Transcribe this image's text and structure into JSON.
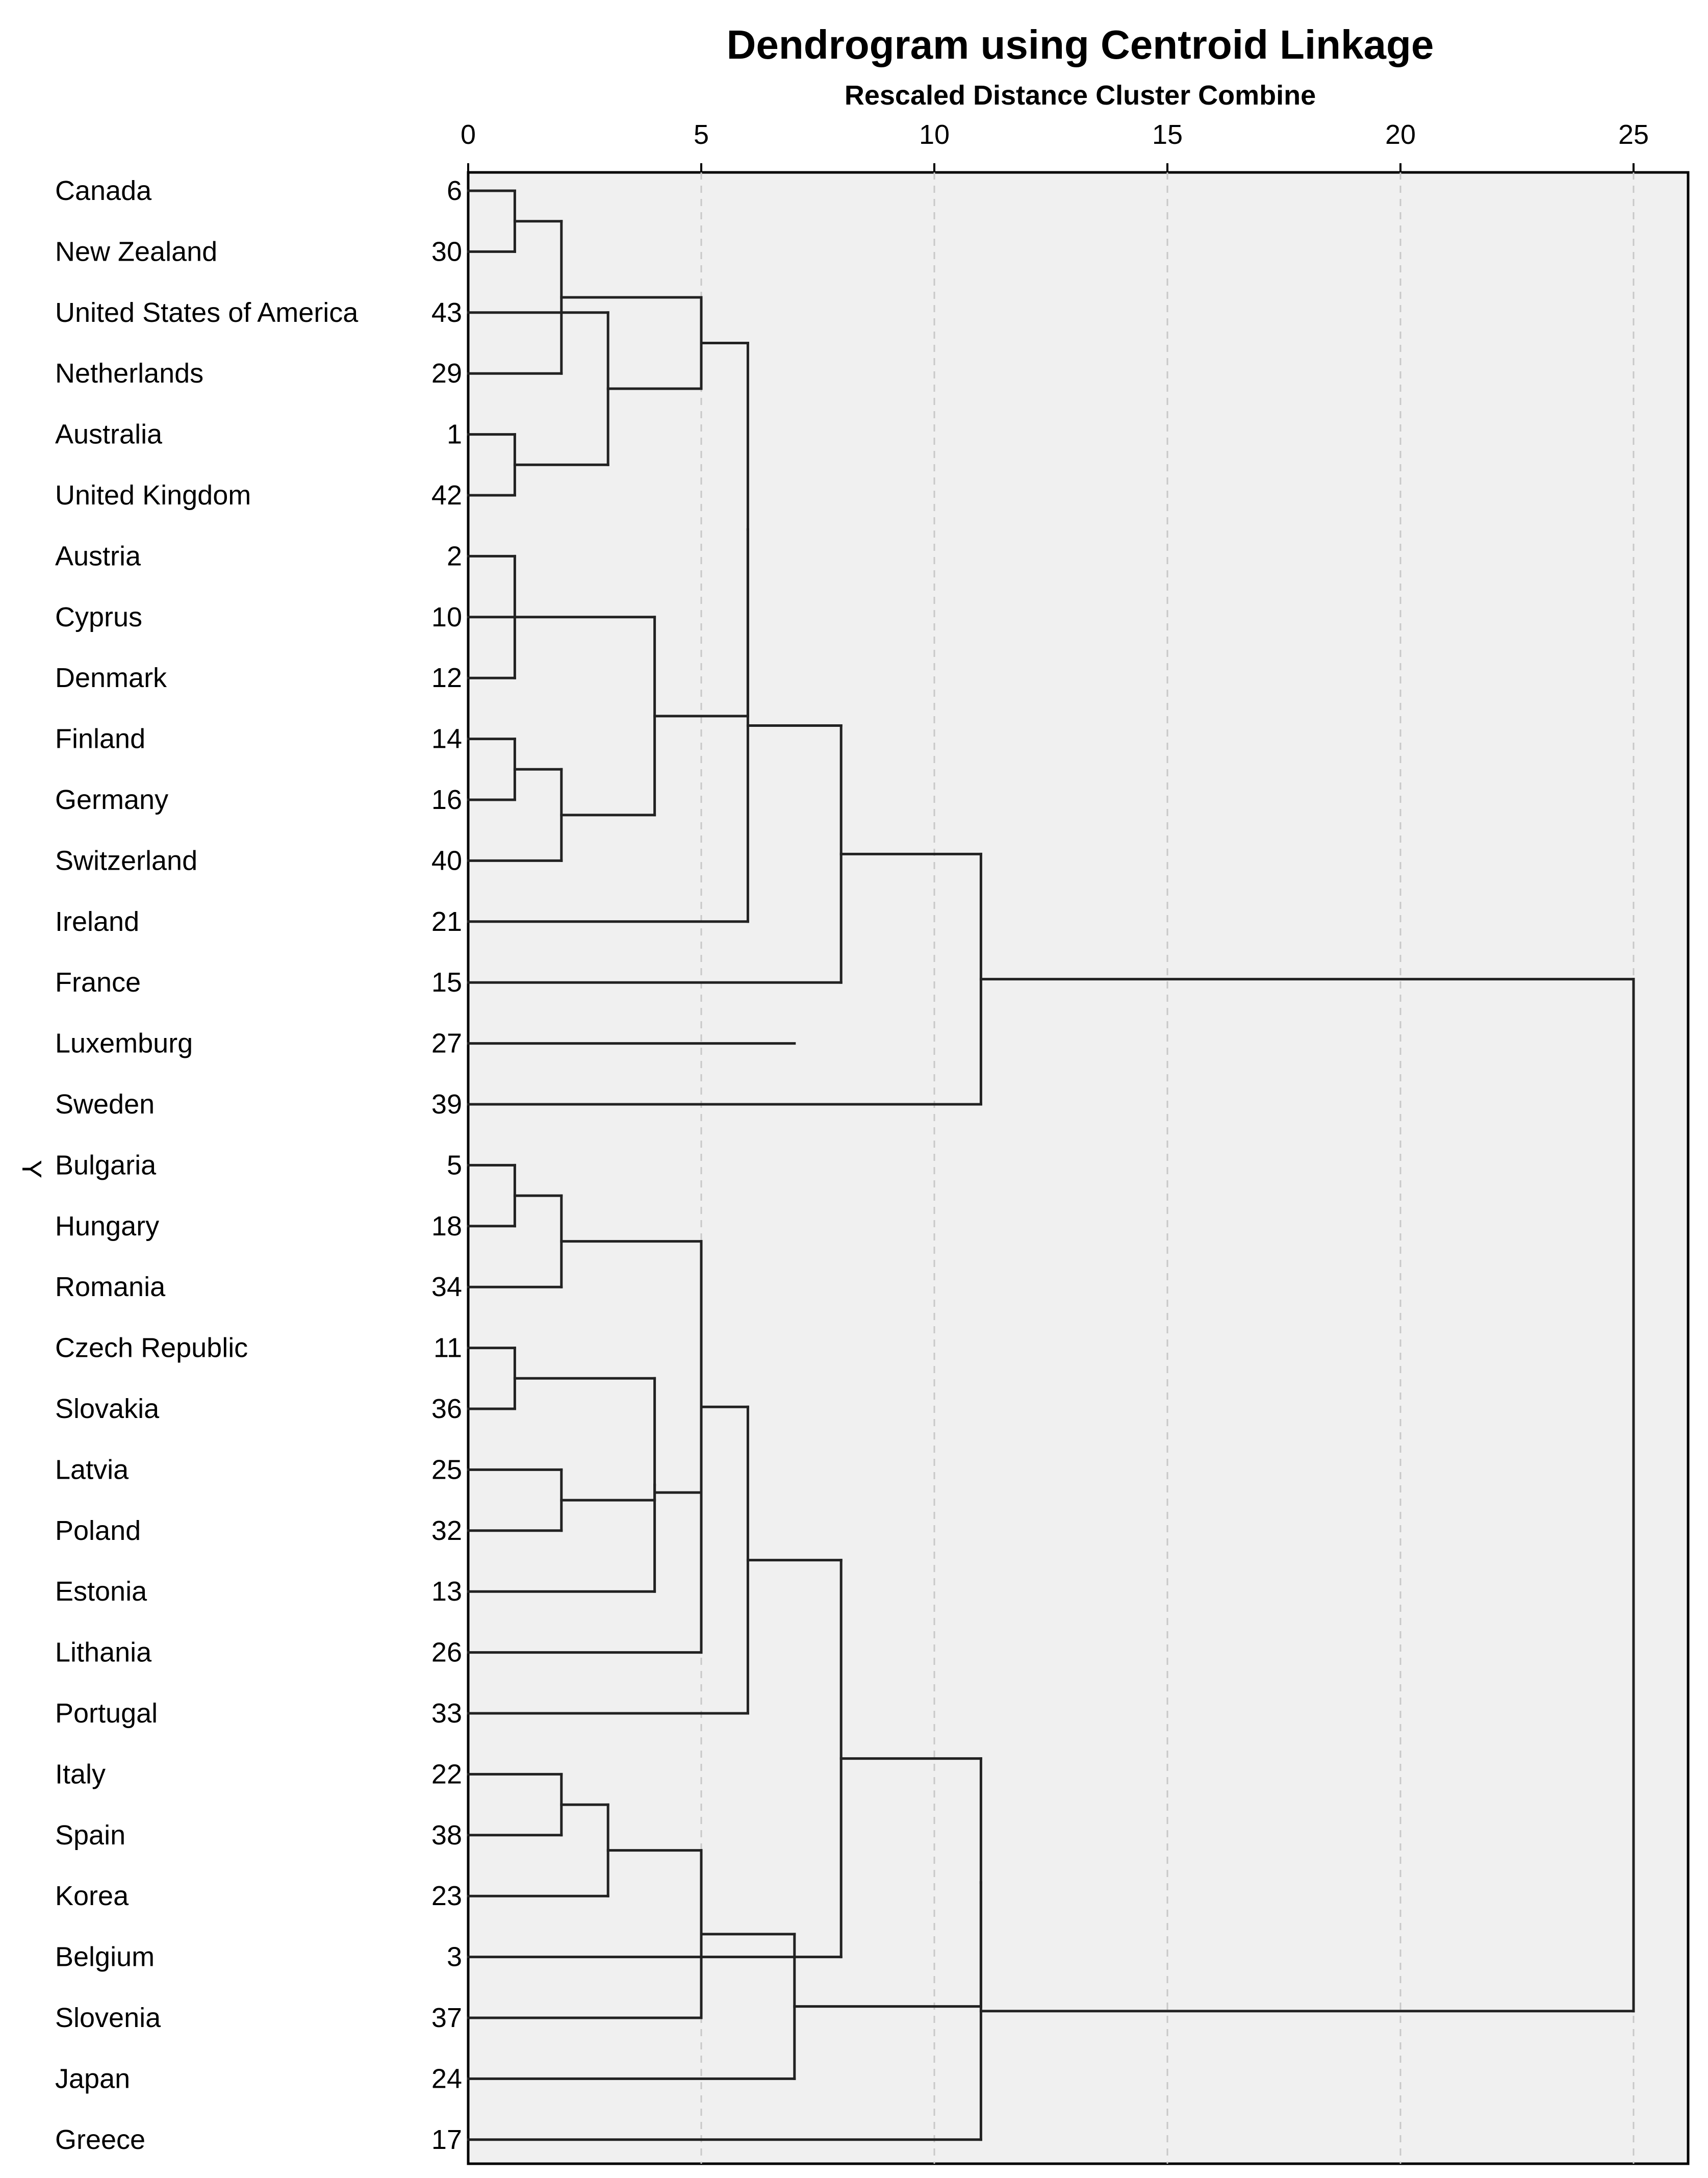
{
  "chart_data": {
    "type": "dendrogram",
    "title": "Dendrogram using Centroid Linkage",
    "subtitle": "Rescaled Distance Cluster Combine",
    "ylabel": "Y",
    "xlim": [
      0,
      25
    ],
    "xticks": [
      "0",
      "5",
      "10",
      "15",
      "20",
      "25"
    ],
    "grid": true,
    "leaves": [
      {
        "label": "Canada",
        "case": "6"
      },
      {
        "label": "New Zealand",
        "case": "30"
      },
      {
        "label": "United States of America",
        "case": "43"
      },
      {
        "label": "Netherlands",
        "case": "29"
      },
      {
        "label": "Australia",
        "case": "1"
      },
      {
        "label": "United Kingdom",
        "case": "42"
      },
      {
        "label": "Austria",
        "case": "2"
      },
      {
        "label": "Cyprus",
        "case": "10"
      },
      {
        "label": "Denmark",
        "case": "12"
      },
      {
        "label": "Finland",
        "case": "14"
      },
      {
        "label": "Germany",
        "case": "16"
      },
      {
        "label": "Switzerland",
        "case": "40"
      },
      {
        "label": "Ireland",
        "case": "21"
      },
      {
        "label": "France",
        "case": "15"
      },
      {
        "label": "Luxemburg",
        "case": "27"
      },
      {
        "label": "Sweden",
        "case": "39"
      },
      {
        "label": "Bulgaria",
        "case": "5"
      },
      {
        "label": "Hungary",
        "case": "18"
      },
      {
        "label": "Romania",
        "case": "34"
      },
      {
        "label": "Czech Republic",
        "case": "11"
      },
      {
        "label": "Slovakia",
        "case": "36"
      },
      {
        "label": "Latvia",
        "case": "25"
      },
      {
        "label": "Poland",
        "case": "32"
      },
      {
        "label": "Estonia",
        "case": "13"
      },
      {
        "label": "Lithania",
        "case": "26"
      },
      {
        "label": "Portugal",
        "case": "33"
      },
      {
        "label": "Italy",
        "case": "22"
      },
      {
        "label": "Spain",
        "case": "38"
      },
      {
        "label": "Korea",
        "case": "23"
      },
      {
        "label": "Belgium",
        "case": "3"
      },
      {
        "label": "Slovenia",
        "case": "37"
      },
      {
        "label": "Japan",
        "case": "24"
      },
      {
        "label": "Greece",
        "case": "17"
      }
    ],
    "merges": [
      {
        "id": "m1",
        "children": [
          "L0",
          "L1"
        ],
        "distance": 1
      },
      {
        "id": "m2",
        "children": [
          "m1",
          "L3"
        ],
        "distance": 2
      },
      {
        "id": "m3",
        "children": [
          "L4",
          "L5"
        ],
        "distance": 1
      },
      {
        "id": "m4",
        "children": [
          "L2",
          "m3"
        ],
        "distance": 3
      },
      {
        "id": "m5",
        "children": [
          "m2",
          "m4"
        ],
        "distance": 5
      },
      {
        "id": "m6",
        "children": [
          "L6",
          "L8"
        ],
        "distance": 1
      },
      {
        "id": "m7",
        "children": [
          "L9",
          "L10"
        ],
        "distance": 1
      },
      {
        "id": "m8",
        "children": [
          "m7",
          "L11"
        ],
        "distance": 2
      },
      {
        "id": "m9",
        "children": [
          "L7",
          "m8"
        ],
        "distance": 4
      },
      {
        "id": "m10",
        "children": [
          "m5",
          "m9"
        ],
        "distance": 6
      },
      {
        "id": "m11",
        "children": [
          "m10",
          "L12"
        ],
        "distance": 6
      },
      {
        "id": "m12",
        "children": [
          "L14"
        ],
        "distance": 7
      },
      {
        "id": "m13",
        "children": [
          "m11",
          "L13"
        ],
        "distance": 8
      },
      {
        "id": "m14",
        "children": [
          "m13",
          "L15"
        ],
        "distance": 11
      },
      {
        "id": "m15",
        "children": [
          "L16",
          "L17"
        ],
        "distance": 1
      },
      {
        "id": "m16",
        "children": [
          "m15",
          "L18"
        ],
        "distance": 2
      },
      {
        "id": "m17",
        "children": [
          "L19",
          "L20"
        ],
        "distance": 1
      },
      {
        "id": "m18",
        "children": [
          "L21",
          "L22"
        ],
        "distance": 2
      },
      {
        "id": "m19",
        "children": [
          "m17",
          "L23"
        ],
        "distance": 4
      },
      {
        "id": "m20",
        "children": [
          "m19",
          "m18"
        ],
        "distance": 4
      },
      {
        "id": "m21",
        "children": [
          "m20",
          "L24"
        ],
        "distance": 5
      },
      {
        "id": "m22",
        "children": [
          "m16",
          "m21"
        ],
        "distance": 5
      },
      {
        "id": "m23",
        "children": [
          "m22",
          "L25"
        ],
        "distance": 6
      },
      {
        "id": "m24",
        "children": [
          "L26",
          "L27"
        ],
        "distance": 2
      },
      {
        "id": "m25",
        "children": [
          "m24",
          "L28"
        ],
        "distance": 3
      },
      {
        "id": "m26",
        "children": [
          "m25",
          "L30"
        ],
        "distance": 5
      },
      {
        "id": "m27",
        "children": [
          "m26",
          "L31"
        ],
        "distance": 7
      },
      {
        "id": "m28",
        "children": [
          "m23",
          "L29"
        ],
        "distance": 8
      },
      {
        "id": "m29",
        "children": [
          "m28",
          "m27"
        ],
        "distance": 11
      },
      {
        "id": "m30",
        "children": [
          "m29",
          "L32"
        ],
        "distance": 11
      },
      {
        "id": "m31",
        "children": [
          "m14",
          "m30"
        ],
        "distance": 25
      }
    ]
  }
}
